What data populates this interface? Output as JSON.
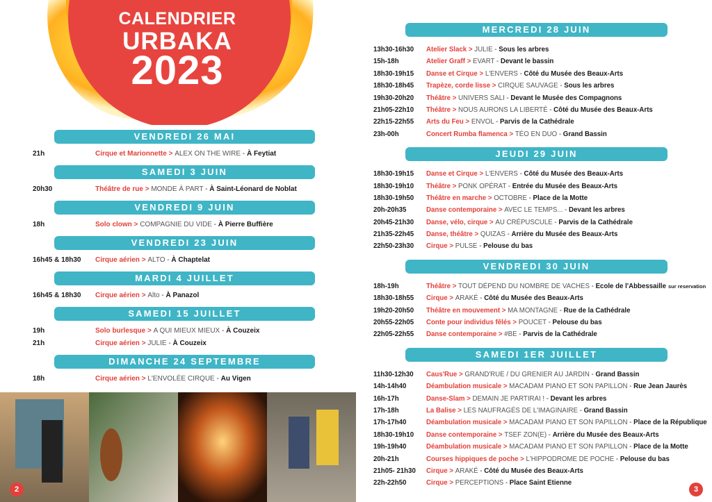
{
  "left_page": {
    "title_lines": [
      "CALENDRIER",
      "URBAKA",
      "2023"
    ],
    "page_number": "2",
    "sections": [
      {
        "header": "VENDREDI 26 MAI",
        "entries": [
          {
            "time": "21h",
            "genre": "Cirque et Marionnette",
            "company": "ALEX ON THE WIRE",
            "place": "À Feytiat"
          }
        ]
      },
      {
        "header": "SAMEDI 3 JUIN",
        "entries": [
          {
            "time": "20h30",
            "genre": "Théâtre de rue",
            "company": "MONDE À PART",
            "place": "À  Saint-Léonard de Noblat"
          }
        ]
      },
      {
        "header": "VENDREDI 9 JUIN",
        "entries": [
          {
            "time": "18h",
            "genre": "Solo clown",
            "company": "COMPAGNIE DU VIDE",
            "place": "À Pierre Buffière"
          }
        ]
      },
      {
        "header": "VENDREDI 23 JUIN",
        "entries": [
          {
            "time": "16h45 & 18h30",
            "genre": "Cirque aérien",
            "company": "ALTO",
            "place": "À Chaptelat"
          }
        ]
      },
      {
        "header": "MARDI 4 JUILLET",
        "entries": [
          {
            "time": "16h45 & 18h30",
            "genre": "Cirque aérien",
            "company": "Alto",
            "place": "À Panazol"
          }
        ]
      },
      {
        "header": "SAMEDI 15 JUILLET",
        "entries": [
          {
            "time": "19h",
            "genre": "Solo burlesque",
            "company": "A QUI MIEUX MIEUX",
            "place": "À Couzeix"
          },
          {
            "time": "21h",
            "genre": "Cirque aérien",
            "company": "JULIE",
            "place": "À Couzeix"
          }
        ]
      },
      {
        "header": "DIMANCHE 24 SEPTEMBRE",
        "entries": [
          {
            "time": "18h",
            "genre": "Cirque aérien",
            "company": "L'ENVOLÉE CIRQUE",
            "place": "Au Vigen"
          }
        ]
      }
    ]
  },
  "right_page": {
    "page_number": "3",
    "sections": [
      {
        "header": "MERCREDI 28 JUIN",
        "entries": [
          {
            "time": "13h30-16h30",
            "genre": "Atelier Slack",
            "company": "JULIE",
            "place": "Sous les arbres"
          },
          {
            "time": "15h-18h",
            "genre": "Atelier Graff",
            "company": "EVART",
            "place": "Devant le bassin"
          },
          {
            "time": "18h30-19h15",
            "genre": "Danse et Cirque",
            "company": "L'ENVERS",
            "place": "Côté du Musée des Beaux-Arts"
          },
          {
            "time": "18h30-18h45",
            "genre": "Trapèze, corde lisse",
            "company": "CIRQUE SAUVAGE",
            "place": "Sous les arbres"
          },
          {
            "time": "19h30-20h20",
            "genre": "Théâtre",
            "company": "UNIVERS SALI",
            "place": "Devant le Musée des Compagnons"
          },
          {
            "time": "21h05-22h10",
            "genre": "Théâtre",
            "company": "NOUS AURONS LA LIBERTÉ",
            "place": "Côté du Musée des Beaux-Arts"
          },
          {
            "time": "22h15-22h55",
            "genre": "Arts du Feu",
            "company": "ENVOL",
            "place": "Parvis de la Cathédrale"
          },
          {
            "time": "23h-00h",
            "genre": "Concert Rumba flamenca",
            "company": "TÉO EN DUO",
            "place": "Grand Bassin"
          }
        ]
      },
      {
        "header": "JEUDI 29 JUIN",
        "entries": [
          {
            "time": "18h30-19h15",
            "genre": "Danse et Cirque",
            "company": "L'ENVERS",
            "place": "Côté du Musée des Beaux-Arts"
          },
          {
            "time": "18h30-19h10",
            "genre": "Théâtre",
            "company": "PONK OPÉRAT",
            "place": "Entrée du Musée des Beaux-Arts"
          },
          {
            "time": "18h30-19h50",
            "genre": "Théâtre en marche",
            "company": "OCTOBRE",
            "place": "Place de la Motte"
          },
          {
            "time": "20h-20h35",
            "genre": "Danse contemporaine",
            "company": "AVEC LE TEMPS...",
            "place": "Devant les arbres"
          },
          {
            "time": "20h45-21h30",
            "genre": "Danse, vélo, cirque",
            "company": "AU CRÉPUSCULE",
            "place": "Parvis de la Cathédrale"
          },
          {
            "time": "21h35-22h45",
            "genre": "Danse, théâtre",
            "company": "QUIZAS",
            "place": "Arrière du Musée des Beaux-Arts"
          },
          {
            "time": "22h50-23h30",
            "genre": "Cirque",
            "company": "PULSE",
            "place": "Pelouse du bas"
          }
        ]
      },
      {
        "header": "VENDREDI 30 JUIN",
        "entries": [
          {
            "time": "18h-19h",
            "genre": "Théâtre",
            "company": "TOUT DÉPEND DU NOMBRE DE VACHES",
            "place": "Ecole de l'Abbessaille",
            "note": "sur reservation"
          },
          {
            "time": "18h30-18h55",
            "genre": "Cirque",
            "company": "ARAKÉ",
            "place": "Côté du Musée des Beaux-Arts"
          },
          {
            "time": "19h20-20h50",
            "genre": "Théâtre en mouvement",
            "company": "MA MONTAGNE",
            "place": "Rue de la Cathédrale"
          },
          {
            "time": "20h55-22h05",
            "genre": "Conte pour individus fêlés",
            "company": "POUCET",
            "place": "Pelouse du bas"
          },
          {
            "time": "22h05-22h55",
            "genre": "Danse contemporaine",
            "company": "#BE",
            "place": "Parvis de la Cathédrale"
          }
        ]
      },
      {
        "header": "SAMEDI 1ER JUILLET",
        "entries": [
          {
            "time": "11h30-12h30",
            "genre": "Caus'Rue",
            "company": "GRAND'RUE / DU GRENIER AU JARDIN",
            "place": "Grand Bassin"
          },
          {
            "time": "14h-14h40",
            "genre": "Déambulation musicale",
            "company": "MACADAM PIANO ET SON PAPILLON",
            "place": "Rue Jean Jaurès"
          },
          {
            "time": "16h-17h",
            "genre": "Danse-Slam",
            "company": "DEMAIN JE PARTIRAI !",
            "place": "Devant les arbres"
          },
          {
            "time": "17h-18h",
            "genre": "La Balise",
            "company": "LES NAUFRAGÉS DE L'IMAGINAIRE",
            "place": "Grand Bassin"
          },
          {
            "time": "17h-17h40",
            "genre": "Déambulation musicale",
            "company": "MACADAM PIANO ET SON PAPILLON",
            "place": "Place de la République"
          },
          {
            "time": "18h30-19h10",
            "genre": "Danse contemporaine",
            "company": "TSEF ZON(E)",
            "place": "Arrière du Musée des Beaux-Arts"
          },
          {
            "time": "19h-19h40",
            "genre": "Déambulation musicale",
            "company": "MACADAM PIANO ET SON PAPILLON",
            "place": "Place de la Motte"
          },
          {
            "time": "20h-21h",
            "genre": "Courses hippiques de poche",
            "company": "L'HIPPODROME DE POCHE",
            "place": "Pelouse du bas"
          },
          {
            "time": "21h05- 21h30",
            "genre": "Cirque",
            "company": "ARAKÉ",
            "place": "Côté du Musée des Beaux-Arts"
          },
          {
            "time": "22h-22h50",
            "genre": "Cirque",
            "company": "PERCEPTIONS",
            "place": "Place Saint Etienne"
          }
        ]
      }
    ]
  }
}
